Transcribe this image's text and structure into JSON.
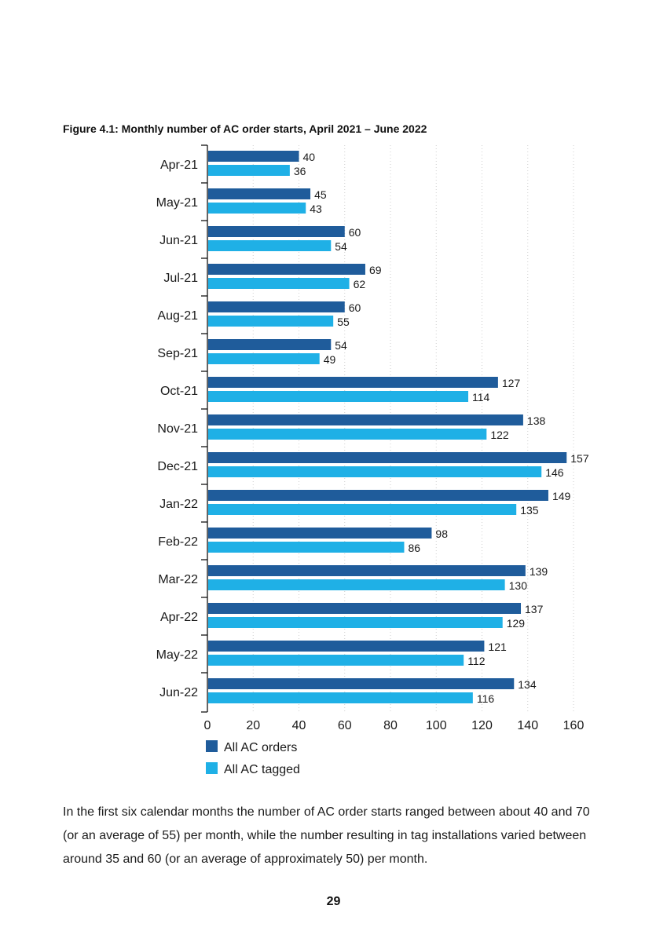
{
  "figure_title": "Figure 4.1: Monthly number of AC order starts, April 2021 – June 2022",
  "paragraph": "In the first six calendar months the number of AC order starts ranged between about 40 and 70 (or an average of 55) per month, while the number resulting in tag installations varied between around 35 and 60 (or an average of approximately 50) per month.",
  "page_number": "29",
  "colors": {
    "orders": "#1f5c9b",
    "tagged": "#1fb0e6",
    "axis": "#000000",
    "grid": "#cfcfcf"
  },
  "chart_data": {
    "type": "bar",
    "orientation": "horizontal",
    "title": "Figure 4.1: Monthly number of AC order starts, April 2021 – June 2022",
    "categories": [
      "Apr-21",
      "May-21",
      "Jun-21",
      "Jul-21",
      "Aug-21",
      "Sep-21",
      "Oct-21",
      "Nov-21",
      "Dec-21",
      "Jan-22",
      "Feb-22",
      "Mar-22",
      "Apr-22",
      "May-22",
      "Jun-22"
    ],
    "series": [
      {
        "name": "All AC orders",
        "values": [
          40,
          45,
          60,
          69,
          60,
          54,
          127,
          138,
          157,
          149,
          98,
          139,
          137,
          121,
          134
        ]
      },
      {
        "name": "All AC tagged",
        "values": [
          36,
          43,
          54,
          62,
          55,
          49,
          114,
          122,
          146,
          135,
          86,
          130,
          129,
          112,
          116
        ]
      }
    ],
    "xlim": [
      0,
      160
    ],
    "xticks": [
      0,
      20,
      40,
      60,
      80,
      100,
      120,
      140,
      160
    ],
    "grid": "vertical dotted",
    "legend_position": "bottom-left"
  }
}
